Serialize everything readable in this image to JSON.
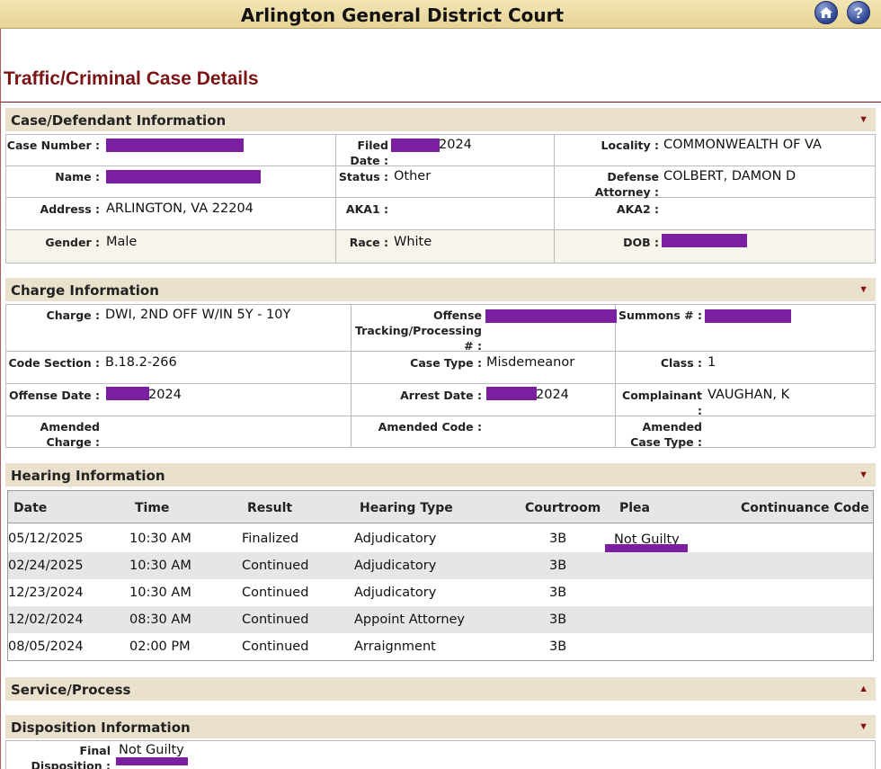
{
  "header": {
    "court_name": "Arlington General District Court",
    "home_icon": "home-icon",
    "help_icon": "help-icon",
    "help_glyph": "?"
  },
  "page_title": "Traffic/Criminal Case Details",
  "case_info": {
    "section_title": "Case/Defendant Information",
    "case_number_label": "Case Number :",
    "filed_label_1": "Filed",
    "filed_label_2": "Date :",
    "filed_value": "2024",
    "locality_label": "Locality :",
    "locality_value": "COMMONWEALTH OF VA",
    "name_label": "Name :",
    "status_label": "Status :",
    "status_value": "Other",
    "defense_label_1": "Defense",
    "defense_label_2": "Attorney :",
    "defense_value": "COLBERT, DAMON D",
    "address_label": "Address :",
    "address_value": "ARLINGTON, VA 22204",
    "aka1_label": "AKA1 :",
    "aka2_label": "AKA2 :",
    "gender_label": "Gender :",
    "gender_value": "Male",
    "race_label": "Race :",
    "race_value": "White",
    "dob_label": "DOB :"
  },
  "charge_info": {
    "section_title": "Charge Information",
    "charge_label": "Charge :",
    "charge_value": "DWI, 2ND OFF W/IN 5Y - 10Y",
    "offense_tracking_label_1": "Offense",
    "offense_tracking_label_2": "Tracking/Processing",
    "offense_tracking_label_3": "# :",
    "summons_label": "Summons # :",
    "code_section_label": "Code Section :",
    "code_section_value": "B.18.2-266",
    "case_type_label": "Case Type :",
    "case_type_value": "Misdemeanor",
    "class_label": "Class :",
    "class_value": "1",
    "offense_date_label": "Offense Date :",
    "offense_date_value": "2024",
    "arrest_date_label": "Arrest Date :",
    "arrest_date_value": "2024",
    "complainant_label": "Complainant :",
    "complainant_value": "VAUGHAN, K",
    "amended_charge_label_1": "Amended",
    "amended_charge_label_2": "Charge :",
    "amended_code_label": "Amended Code :",
    "amended_case_type_label_1": "Amended",
    "amended_case_type_label_2": "Case Type :"
  },
  "hearing_info": {
    "section_title": "Hearing Information",
    "columns": [
      "Date",
      "Time",
      "Result",
      "Hearing Type",
      "Courtroom",
      "Plea",
      "Continuance Code"
    ],
    "rows": [
      {
        "date": "05/12/2025",
        "time": "10:30 AM",
        "result": "Finalized",
        "type": "Adjudicatory",
        "courtroom": "3B",
        "plea": "Not Guilty"
      },
      {
        "date": "02/24/2025",
        "time": "10:30 AM",
        "result": "Continued",
        "type": "Adjudicatory",
        "courtroom": "3B",
        "plea": ""
      },
      {
        "date": "12/23/2024",
        "time": "10:30 AM",
        "result": "Continued",
        "type": "Adjudicatory",
        "courtroom": "3B",
        "plea": ""
      },
      {
        "date": "12/02/2024",
        "time": "08:30 AM",
        "result": "Continued",
        "type": "Appoint Attorney",
        "courtroom": "3B",
        "plea": ""
      },
      {
        "date": "08/05/2024",
        "time": "02:00 PM",
        "result": "Continued",
        "type": "Arraignment",
        "courtroom": "3B",
        "plea": ""
      }
    ]
  },
  "service_process": {
    "section_title": "Service/Process"
  },
  "disposition_info": {
    "section_title": "Disposition Information",
    "final_label_1": "Final",
    "final_label_2": "Disposition :",
    "final_value": "Not Guilty"
  },
  "colors": {
    "title_red": "#7b1414",
    "redaction": "#7a1fa2",
    "header_gold": "#e7d396",
    "section_bg": "#e9e1cc"
  }
}
